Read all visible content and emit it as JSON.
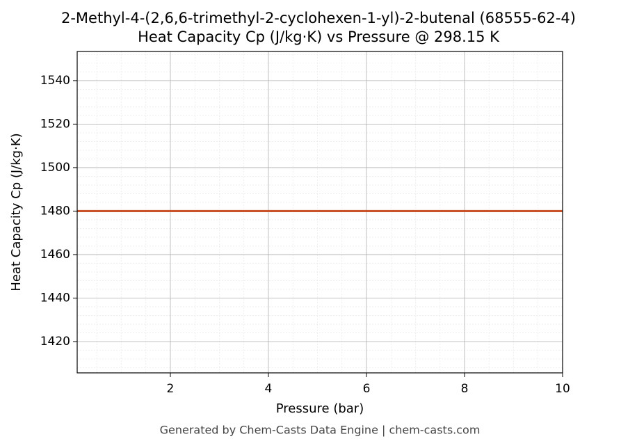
{
  "chart_data": {
    "type": "line",
    "title": "2-Methyl-4-(2,6,6-trimethyl-2-cyclohexen-1-yl)-2-butenal (68555-62-4)",
    "subtitle": "Heat Capacity Cp (J/kg·K) vs Pressure @ 298.15 K",
    "x_label": "Pressure (bar)",
    "y_label": "Heat Capacity Cp (J/kg·K)",
    "footer": "Generated by Chem-Casts Data Engine | chem-casts.com",
    "x": [
      0.1,
      1,
      2,
      3,
      4,
      5,
      6,
      7,
      8,
      9,
      10
    ],
    "series": [
      {
        "name": "Cp",
        "color": "#c8532a",
        "values": [
          1480,
          1480,
          1480,
          1480,
          1480,
          1480,
          1480,
          1480,
          1480,
          1480,
          1480
        ]
      }
    ],
    "xlim": [
      0.1,
      10
    ],
    "ylim": [
      1405.6,
      1553.4
    ],
    "xticks": [
      2,
      4,
      6,
      8,
      10
    ],
    "yticks": [
      1420,
      1440,
      1460,
      1480,
      1500,
      1520,
      1540
    ],
    "grid": true
  }
}
